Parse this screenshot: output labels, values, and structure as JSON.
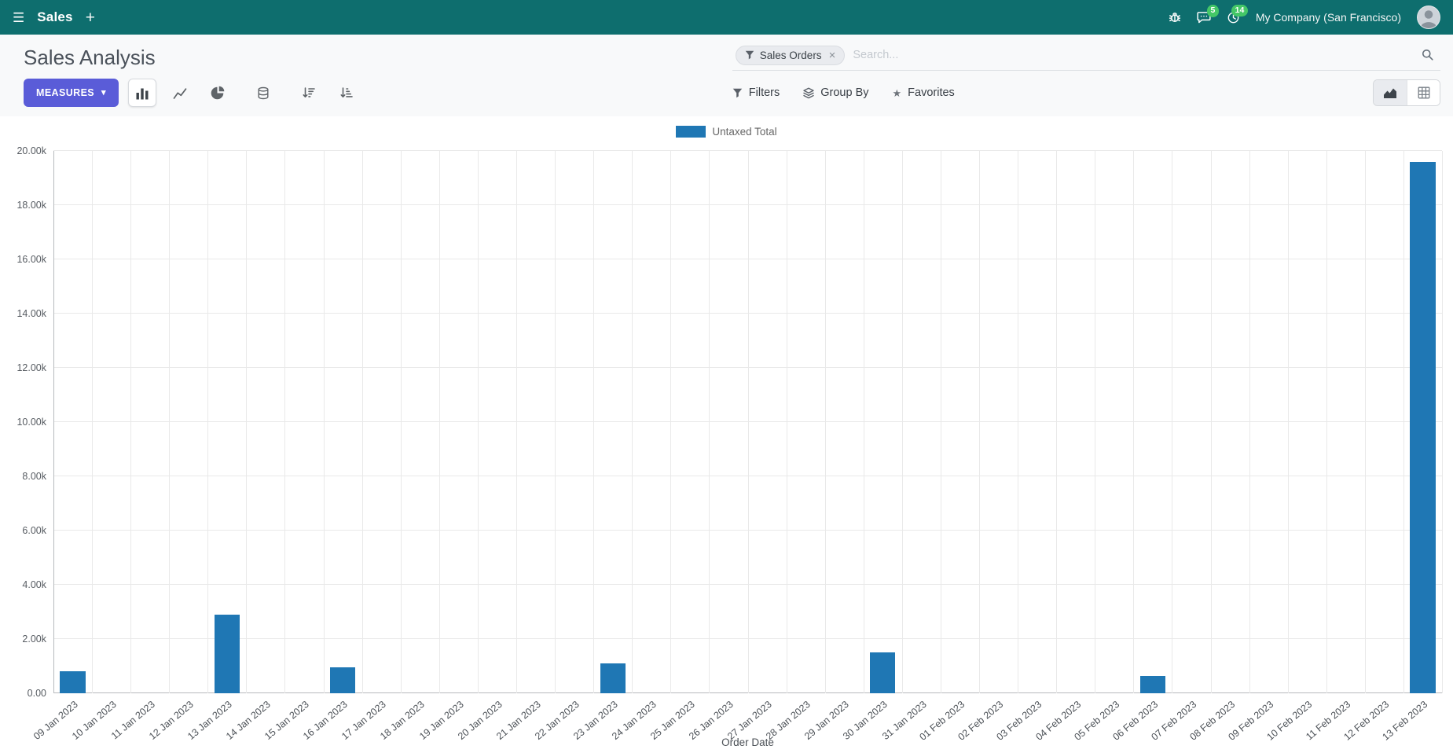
{
  "navbar": {
    "app_name": "Sales",
    "company": "My Company (San Francisco)",
    "messages_badge": "5",
    "activities_badge": "14"
  },
  "control_panel": {
    "title": "Sales Analysis",
    "measures_label": "MEASURES",
    "search": {
      "facet_label": "Sales Orders",
      "placeholder": "Search..."
    },
    "filters_label": "Filters",
    "group_by_label": "Group By",
    "favorites_label": "Favorites"
  },
  "icons": {
    "hamburger": "☰",
    "plus": "+",
    "caret_down": "▾",
    "star": "★",
    "close": "×"
  },
  "colors": {
    "navbar_bg": "#0e6e6e",
    "accent": "#5a5cd8",
    "bar": "#1f77b4",
    "badge": "#44c767"
  },
  "chart_data": {
    "type": "bar",
    "title": "",
    "xlabel": "Order Date",
    "ylabel": "",
    "ylim": [
      0,
      20000
    ],
    "ytick_step": 2000,
    "ytick_labels": [
      "0.00",
      "2.00k",
      "4.00k",
      "6.00k",
      "8.00k",
      "10.00k",
      "12.00k",
      "14.00k",
      "16.00k",
      "18.00k",
      "20.00k"
    ],
    "grid": true,
    "legend_position": "top",
    "categories": [
      "09 Jan 2023",
      "10 Jan 2023",
      "11 Jan 2023",
      "12 Jan 2023",
      "13 Jan 2023",
      "14 Jan 2023",
      "15 Jan 2023",
      "16 Jan 2023",
      "17 Jan 2023",
      "18 Jan 2023",
      "19 Jan 2023",
      "20 Jan 2023",
      "21 Jan 2023",
      "22 Jan 2023",
      "23 Jan 2023",
      "24 Jan 2023",
      "25 Jan 2023",
      "26 Jan 2023",
      "27 Jan 2023",
      "28 Jan 2023",
      "29 Jan 2023",
      "30 Jan 2023",
      "31 Jan 2023",
      "01 Feb 2023",
      "02 Feb 2023",
      "03 Feb 2023",
      "04 Feb 2023",
      "05 Feb 2023",
      "06 Feb 2023",
      "07 Feb 2023",
      "08 Feb 2023",
      "09 Feb 2023",
      "10 Feb 2023",
      "11 Feb 2023",
      "12 Feb 2023",
      "13 Feb 2023"
    ],
    "series": [
      {
        "name": "Untaxed Total",
        "color": "#1f77b4",
        "values": [
          800,
          0,
          0,
          0,
          2900,
          0,
          0,
          950,
          0,
          0,
          0,
          0,
          0,
          0,
          1100,
          0,
          0,
          0,
          0,
          0,
          0,
          1500,
          0,
          0,
          0,
          0,
          0,
          0,
          650,
          0,
          0,
          0,
          0,
          0,
          0,
          19600
        ]
      }
    ]
  }
}
